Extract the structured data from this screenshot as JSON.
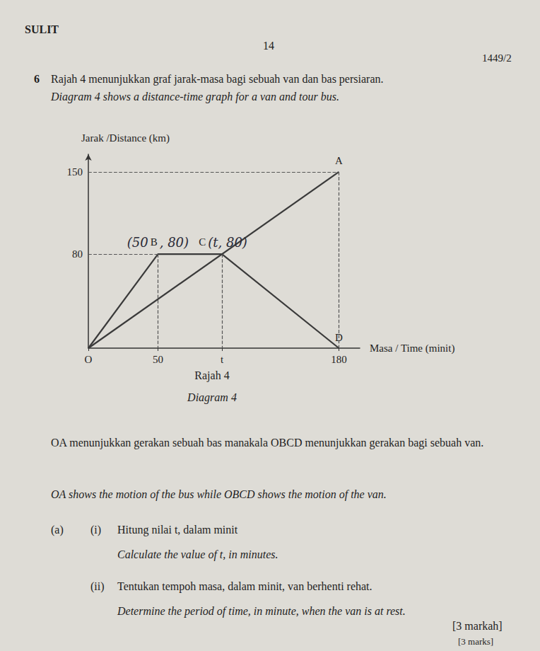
{
  "header": {
    "left": "SULIT",
    "page": "14",
    "code": "1449/2"
  },
  "question": {
    "number": "6",
    "intro_ms": "Rajah 4 menunjukkan graf jarak-masa bagi sebuah van dan bas persiaran.",
    "intro_en": "Diagram 4 shows a distance-time graph for a van and tour bus.",
    "caption_ms": "Rajah 4",
    "caption_en": "Diagram 4",
    "statement_ms": "OA menunjukkan gerakan sebuah bas manakala OBCD menunjukkan gerakan bagi sebuah van.",
    "statement_en": "OA shows the motion of the bus while OBCD shows the motion of the van.",
    "part": "(a)",
    "subparts": [
      {
        "label": "(i)",
        "ms": "Hitung nilai t, dalam minit",
        "en": "Calculate the value of t, in minutes."
      },
      {
        "label": "(ii)",
        "ms": "Tentukan tempoh masa, dalam minit, van berhenti rehat.",
        "en": "Determine the period of time, in minute, when the van is at rest."
      }
    ],
    "marks_ms": "[3 markah]",
    "marks_en": "[3 marks]"
  },
  "chart_data": {
    "type": "line",
    "y_label": "Jarak /Distance (km)",
    "x_label": "Masa / Time (minit)",
    "xlim": [
      0,
      195
    ],
    "ylim": [
      0,
      165
    ],
    "xticks": [
      {
        "value": 0,
        "label": "O"
      },
      50,
      {
        "value": 96,
        "label": "t"
      },
      180
    ],
    "yticks": [
      80,
      150
    ],
    "grid": false,
    "series": [
      {
        "color": "#3a3a3a",
        "x": [
          0,
          180
        ],
        "values": [
          0,
          150
        ],
        "point_labels": [
          null,
          "A"
        ]
      },
      {
        "color": "#3a3a3a",
        "x": [
          0,
          50,
          96,
          180
        ],
        "values": [
          0,
          80,
          80,
          0
        ],
        "point_labels": [
          null,
          "B",
          "C",
          "D"
        ]
      }
    ],
    "annotations": [
      {
        "text": "(50",
        "point": "B",
        "side": "left"
      },
      {
        "text": ", 80)",
        "point": "B",
        "side": "right"
      },
      {
        "text": "(t, 80)",
        "point": "C",
        "side": "right"
      }
    ]
  }
}
